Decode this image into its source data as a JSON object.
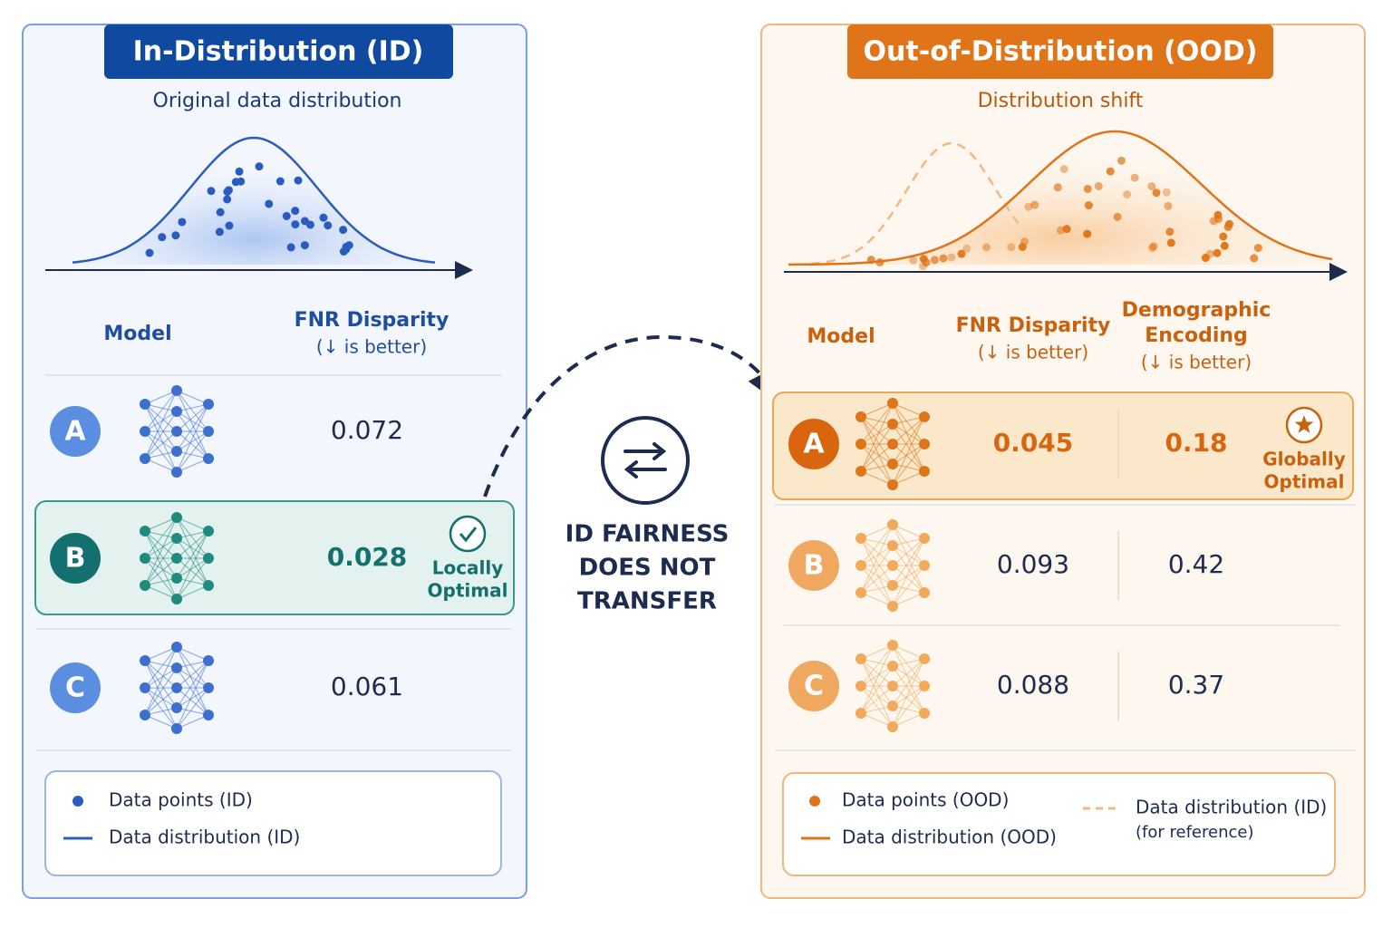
{
  "left": {
    "title": "In-Distribution (ID)",
    "subtitle": "Original data distribution",
    "headers": [
      {
        "name": "Model"
      },
      {
        "name": "FNR Disparity",
        "note": "(↓ is better)"
      }
    ],
    "rows": [
      {
        "model": "A",
        "fnr": "0.072"
      },
      {
        "model": "B",
        "fnr": "0.028",
        "badge": [
          "Locally",
          "Optimal"
        ]
      },
      {
        "model": "C",
        "fnr": "0.061"
      }
    ],
    "legend": [
      "Data points (ID)",
      "Data distribution (ID)"
    ]
  },
  "center": {
    "lines": [
      "ID FAIRNESS",
      "DOES NOT",
      "TRANSFER"
    ]
  },
  "right": {
    "title": "Out-of-Distribution (OOD)",
    "subtitle": "Distribution shift",
    "headers": [
      {
        "name": "Model"
      },
      {
        "name": "FNR Disparity",
        "note": "(↓ is better)"
      },
      {
        "name": [
          "Demographic",
          "Encoding"
        ],
        "note": "(↓ is better)"
      }
    ],
    "rows": [
      {
        "model": "A",
        "fnr": "0.045",
        "encoding": "0.18",
        "badge": [
          "Globally",
          "Optimal"
        ]
      },
      {
        "model": "B",
        "fnr": "0.093",
        "encoding": "0.42"
      },
      {
        "model": "C",
        "fnr": "0.088",
        "encoding": "0.37"
      }
    ],
    "legend": [
      {
        "label": "Data points (OOD)"
      },
      {
        "label": "Data distribution (OOD)"
      },
      {
        "label": "Data distribution (ID)",
        "note": "(for reference)"
      }
    ]
  }
}
